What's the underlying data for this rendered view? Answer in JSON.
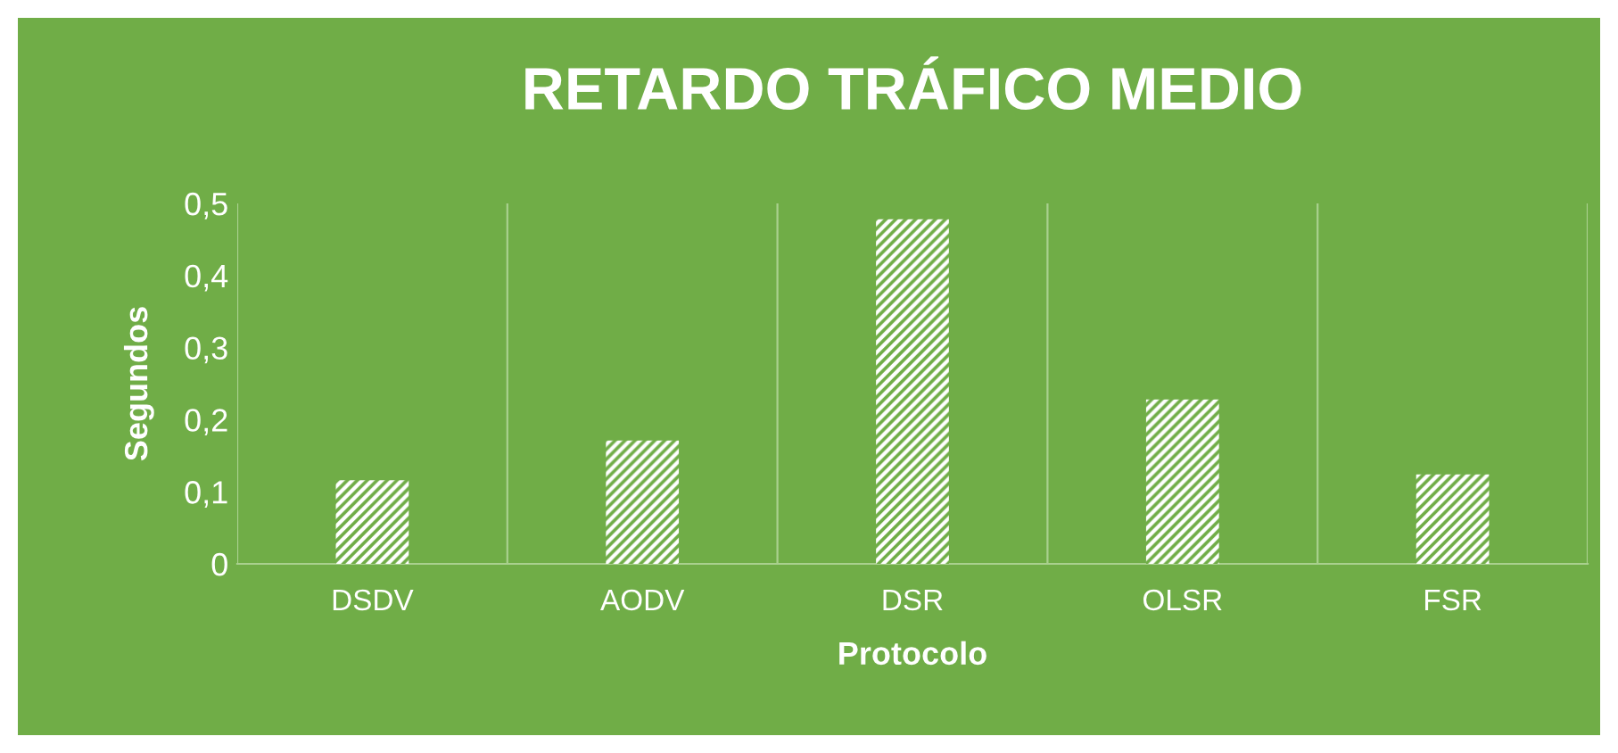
{
  "chart_data": {
    "type": "bar",
    "title": "RETARDO TRÁFICO MEDIO",
    "xlabel": "Protocolo",
    "ylabel": "Segundos",
    "categories": [
      "DSDV",
      "AODV",
      "DSR",
      "OLSR",
      "FSR"
    ],
    "values": [
      0.116,
      0.171,
      0.478,
      0.228,
      0.124
    ],
    "color": "#ffffff",
    "ylim": [
      0,
      0.5
    ],
    "yticks": [
      {
        "value": 0,
        "label": "0"
      },
      {
        "value": 0.1,
        "label": "0,1"
      },
      {
        "value": 0.2,
        "label": "0,2"
      },
      {
        "value": 0.3,
        "label": "0,3"
      },
      {
        "value": 0.4,
        "label": "0,4"
      },
      {
        "value": 0.5,
        "label": "0,5"
      }
    ],
    "grid": "x"
  }
}
